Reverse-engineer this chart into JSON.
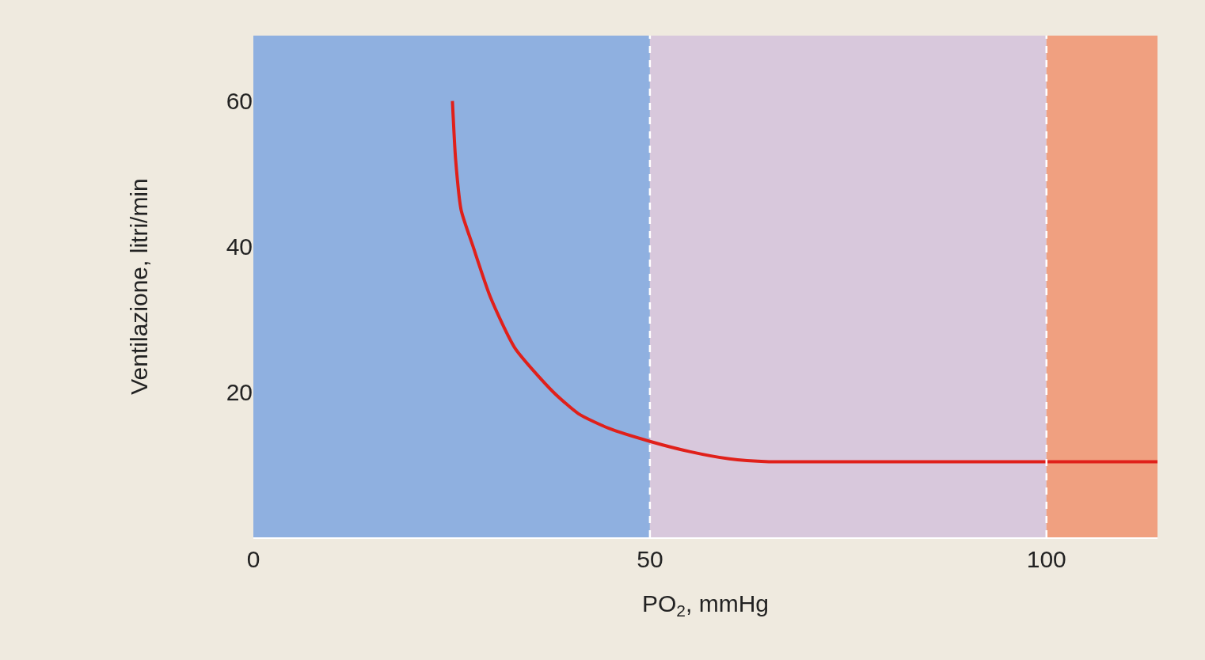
{
  "chart_data": {
    "type": "line",
    "xlabel": "PO$_{2}$, mmHg",
    "ylabel": "Ventilazione, litri/min",
    "x": [
      25.1,
      25.5,
      26.2,
      27.7,
      29.9,
      33,
      37.8,
      41,
      44.8,
      50,
      55,
      60,
      65,
      70,
      80,
      90,
      100,
      114
    ],
    "series": [
      {
        "color": "#e0201a",
        "values": [
          60,
          52,
          45,
          40,
          33,
          26,
          20,
          17,
          15,
          13.2,
          11.8,
          10.8,
          10.4,
          10.4,
          10.4,
          10.4,
          10.4,
          10.4
        ]
      }
    ],
    "xlim": [
      0,
      114
    ],
    "ylim": [
      0,
      69
    ],
    "xticks": [
      0,
      50,
      100
    ],
    "yticks": [
      20,
      40,
      60
    ],
    "bands": [
      {
        "axis": "x",
        "from": 0,
        "to": 50,
        "color": "#8fb0e0"
      },
      {
        "axis": "x",
        "from": 50,
        "to": 100,
        "color": "#d8c8dc"
      },
      {
        "axis": "x",
        "from": 100,
        "to": 114,
        "color": "#f0a080"
      }
    ],
    "ref_lines": [
      {
        "axis": "x",
        "value": 50,
        "color": "#ffffff",
        "line_style": "dashed"
      },
      {
        "axis": "x",
        "value": 100,
        "color": "#ffffff",
        "line_style": "dashed"
      }
    ],
    "marker": "none",
    "line_style": "solid"
  }
}
